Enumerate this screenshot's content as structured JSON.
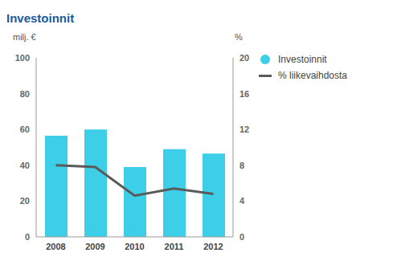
{
  "chart_data": {
    "type": "bar",
    "title": "Investoinnit",
    "y_label": "milj. €",
    "y2_label": "%",
    "categories": [
      "2008",
      "2009",
      "2010",
      "2011",
      "2012"
    ],
    "series": [
      {
        "name": "Investoinnit",
        "type": "bar",
        "color": "#3dcfe8",
        "values": [
          56.5,
          60,
          39,
          49,
          46.5
        ]
      },
      {
        "name": "% liikevaihdosta",
        "type": "line",
        "color": "#5a5a5a",
        "axis": "y2",
        "values": [
          8.0,
          7.8,
          4.6,
          5.4,
          4.8
        ]
      }
    ],
    "ylim": [
      0,
      100
    ],
    "yticks": [
      0,
      20,
      40,
      60,
      80,
      100
    ],
    "y2lim": [
      0,
      20
    ],
    "y2ticks": [
      0,
      4,
      8,
      12,
      16,
      20
    ],
    "grid": false,
    "legend": "upper right"
  }
}
